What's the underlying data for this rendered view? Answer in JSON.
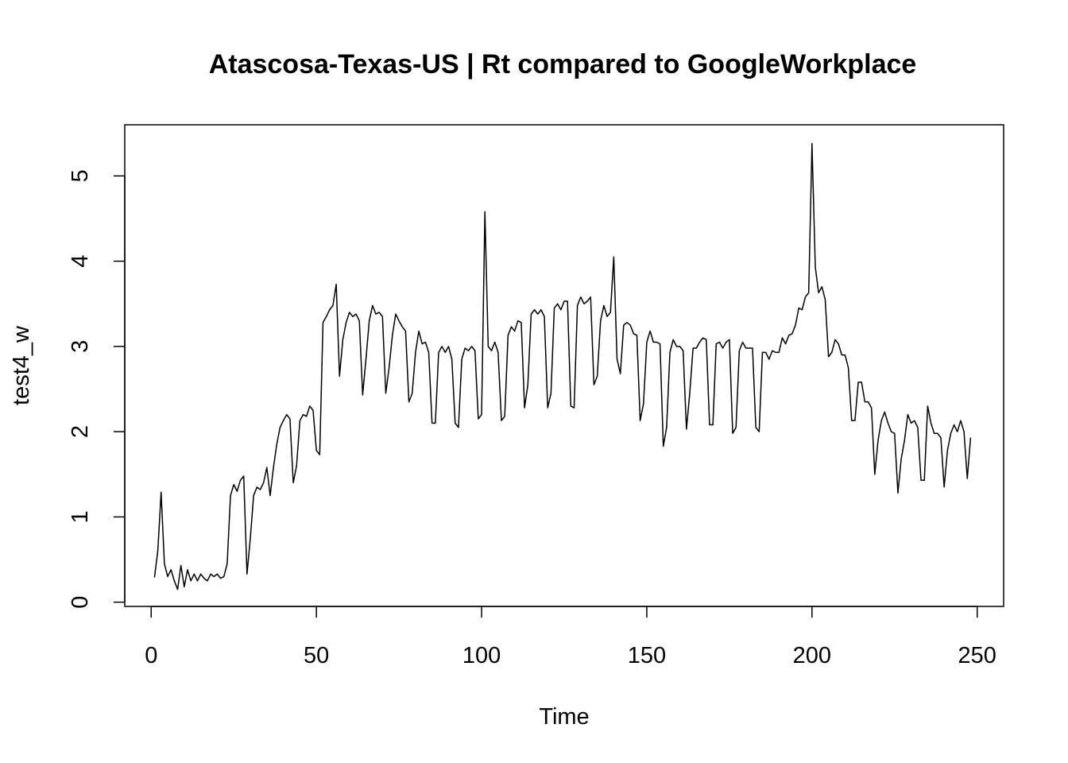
{
  "chart_data": {
    "type": "line",
    "title": "Atascosa-Texas-US | Rt compared to GoogleWorkplace",
    "xlabel": "Time",
    "ylabel": "test4_w",
    "xlim": [
      -8,
      258
    ],
    "ylim": [
      -0.05,
      5.6
    ],
    "x_ticks": [
      0,
      50,
      100,
      150,
      200,
      250
    ],
    "y_ticks": [
      0,
      1,
      2,
      3,
      4,
      5
    ],
    "x_tick_labels": [
      "0",
      "50",
      "100",
      "150",
      "200",
      "250"
    ],
    "y_tick_labels": [
      "0",
      "1",
      "2",
      "3",
      "4",
      "5"
    ],
    "grid": false,
    "line_color": "#000000",
    "series": [
      {
        "x_start": 1,
        "values": [
          0.29,
          0.6,
          1.29,
          0.45,
          0.3,
          0.38,
          0.25,
          0.15,
          0.43,
          0.18,
          0.38,
          0.25,
          0.33,
          0.25,
          0.33,
          0.28,
          0.25,
          0.33,
          0.3,
          0.33,
          0.28,
          0.3,
          0.45,
          1.25,
          1.38,
          1.3,
          1.43,
          1.48,
          0.33,
          0.75,
          1.25,
          1.35,
          1.32,
          1.4,
          1.58,
          1.25,
          1.58,
          1.85,
          2.05,
          2.13,
          2.2,
          2.15,
          1.4,
          1.6,
          2.13,
          2.2,
          2.18,
          2.3,
          2.25,
          1.78,
          1.73,
          3.28,
          3.35,
          3.43,
          3.48,
          3.73,
          2.65,
          3.08,
          3.28,
          3.4,
          3.35,
          3.38,
          3.3,
          2.43,
          2.85,
          3.3,
          3.48,
          3.38,
          3.4,
          3.35,
          2.45,
          2.75,
          3.13,
          3.38,
          3.3,
          3.23,
          3.18,
          2.35,
          2.45,
          2.93,
          3.18,
          3.03,
          3.05,
          2.93,
          2.1,
          2.1,
          2.93,
          3.0,
          2.93,
          3.0,
          2.85,
          2.1,
          2.05,
          2.85,
          2.98,
          2.95,
          3.0,
          2.95,
          2.15,
          2.2,
          4.58,
          3.0,
          2.95,
          3.05,
          2.93,
          2.13,
          2.18,
          3.13,
          3.23,
          3.18,
          3.3,
          3.28,
          2.28,
          2.55,
          3.38,
          3.43,
          3.38,
          3.43,
          3.35,
          2.28,
          2.45,
          3.45,
          3.5,
          3.43,
          3.53,
          3.53,
          2.3,
          2.28,
          3.48,
          3.58,
          3.5,
          3.53,
          3.58,
          2.55,
          2.65,
          3.3,
          3.48,
          3.35,
          3.4,
          4.05,
          2.85,
          2.68,
          3.25,
          3.28,
          3.25,
          3.15,
          3.13,
          2.13,
          2.33,
          3.05,
          3.18,
          3.05,
          3.05,
          3.03,
          1.83,
          2.05,
          2.93,
          3.08,
          3.0,
          3.0,
          2.95,
          2.03,
          2.45,
          2.98,
          2.98,
          3.05,
          3.1,
          3.08,
          2.08,
          2.08,
          3.03,
          3.05,
          2.98,
          3.05,
          3.08,
          1.98,
          2.05,
          2.95,
          3.05,
          2.98,
          2.98,
          2.98,
          2.05,
          2.0,
          2.93,
          2.93,
          2.85,
          2.95,
          2.93,
          2.93,
          3.1,
          3.03,
          3.13,
          3.15,
          3.25,
          3.45,
          3.43,
          3.58,
          3.63,
          5.38,
          3.93,
          3.63,
          3.7,
          3.55,
          2.88,
          2.93,
          3.08,
          3.03,
          2.9,
          2.9,
          2.75,
          2.13,
          2.13,
          2.58,
          2.58,
          2.35,
          2.35,
          2.28,
          1.5,
          1.9,
          2.13,
          2.23,
          2.1,
          2.0,
          1.98,
          1.28,
          1.68,
          1.9,
          2.2,
          2.1,
          2.13,
          2.05,
          1.43,
          1.43,
          2.3,
          2.1,
          1.98,
          1.98,
          1.93,
          1.35,
          1.78,
          1.98,
          2.08,
          2.0,
          2.13,
          2.0,
          1.45,
          1.93
        ]
      }
    ]
  }
}
